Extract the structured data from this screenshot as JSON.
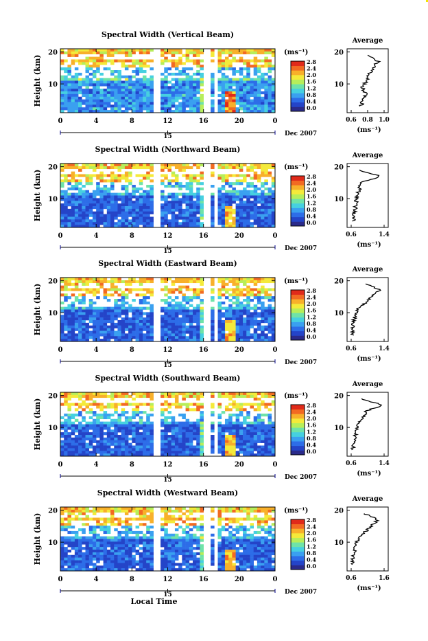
{
  "chart_data": {
    "type": "heatmap",
    "figure_xlabel": "Local Time",
    "date_label": "Dec 2007",
    "date_tick": "15",
    "x_ticks": [
      "0",
      "4",
      "8",
      "12",
      "16",
      "20",
      "0"
    ],
    "y_ticks": [
      "20",
      "10"
    ],
    "ylabel": "Height (km)",
    "colorbar": {
      "unit": "(ms⁻¹)",
      "ticks": [
        "2.8",
        "2.4",
        "2.0",
        "1.6",
        "1.2",
        "0.8",
        "0.4",
        "0.0"
      ],
      "range": [
        0.0,
        2.8
      ],
      "colors": [
        "#2a2a8a",
        "#2444c8",
        "#2d6de8",
        "#3aa0f0",
        "#46d0e0",
        "#6fe3a8",
        "#b7ee5a",
        "#f4ea3a",
        "#f8b02a",
        "#f26a22",
        "#e02a1a"
      ]
    },
    "data_gaps_hours": [
      [
        10.6,
        11.0
      ],
      [
        16.2,
        16.6
      ],
      [
        17.3,
        17.7
      ]
    ],
    "panels": [
      {
        "title": "Spectral Width (Vertical Beam)",
        "avg_title": "Average",
        "avg_xlabel": "(ms⁻¹)",
        "avg_xticks": [
          "0.6",
          "0.8",
          "1.0"
        ],
        "avg_profile": {
          "height_km": [
            3,
            5,
            7,
            9,
            11,
            13,
            15,
            17,
            19
          ],
          "width_ms": [
            0.72,
            0.74,
            0.78,
            0.73,
            0.79,
            0.82,
            0.86,
            0.93,
            0.8
          ]
        }
      },
      {
        "title": "Spectral Width (Northward Beam)",
        "avg_title": "Average",
        "avg_xlabel": "(ms⁻¹)",
        "avg_xticks": [
          "0.6",
          "1.4"
        ],
        "avg_profile": {
          "height_km": [
            3,
            5,
            7,
            9,
            11,
            13,
            15,
            17,
            19
          ],
          "width_ms": [
            0.66,
            0.66,
            0.7,
            0.72,
            0.75,
            0.8,
            0.85,
            1.3,
            0.8
          ]
        }
      },
      {
        "title": "Spectral Width (Eastward Beam)",
        "avg_title": "Average",
        "avg_xlabel": "(ms⁻¹)",
        "avg_xticks": [
          "0.6",
          "1.4"
        ],
        "avg_profile": {
          "height_km": [
            3,
            5,
            7,
            9,
            11,
            13,
            15,
            17,
            19
          ],
          "width_ms": [
            0.64,
            0.64,
            0.66,
            0.68,
            0.76,
            0.95,
            1.1,
            1.3,
            0.95
          ]
        }
      },
      {
        "title": "Spectral Width (Southward Beam)",
        "avg_title": "Average",
        "avg_xlabel": "(ms⁻¹)",
        "avg_xticks": [
          "0.6",
          "1.4"
        ],
        "avg_profile": {
          "height_km": [
            3,
            5,
            7,
            9,
            11,
            13,
            15,
            17,
            19
          ],
          "width_ms": [
            0.64,
            0.65,
            0.7,
            0.72,
            0.78,
            0.9,
            0.95,
            1.35,
            0.85
          ]
        }
      },
      {
        "title": "Spectral Width (Westward Beam)",
        "avg_title": "Average",
        "avg_xlabel": "(ms⁻¹)",
        "avg_xticks": [
          "0.6",
          "1.6"
        ],
        "avg_profile": {
          "height_km": [
            3,
            5,
            7,
            9,
            11,
            13,
            15,
            17,
            19
          ],
          "width_ms": [
            0.64,
            0.66,
            0.7,
            0.74,
            0.82,
            1.0,
            1.2,
            1.4,
            1.0
          ]
        }
      }
    ]
  }
}
